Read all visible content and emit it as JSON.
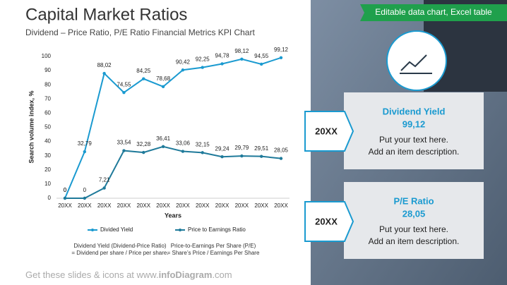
{
  "header": {
    "title": "Capital Market Ratios",
    "subtitle": "Dividend – Price Ratio, P/E Ratio Financial  Metrics KPI Chart"
  },
  "banner": "Editable data chart, Excel table",
  "cards": [
    {
      "label": "20XX",
      "title": "Dividend Yield",
      "value": "99,12",
      "lines": [
        "Put your text here.",
        "Add an item description."
      ]
    },
    {
      "label": "20XX",
      "title": "P/E Ratio",
      "value": "28,05",
      "lines": [
        "Put your text here.",
        "Add an item description."
      ]
    }
  ],
  "footer": [
    "Get these slides & icons at www.",
    "infoDiagram",
    ".com"
  ],
  "chart_data": {
    "type": "line",
    "categories": [
      "20XX",
      "20XX",
      "20XX",
      "20XX",
      "20XX",
      "20XX",
      "20XX",
      "20XX",
      "20XX",
      "20XX",
      "20XX",
      "20XX"
    ],
    "series": [
      {
        "name": "Divided Yield",
        "color": "#1a9ad0",
        "values": [
          0,
          32.79,
          88.02,
          74.55,
          84.25,
          78.68,
          90.42,
          92.25,
          94.78,
          98.12,
          94.55,
          99.12
        ],
        "value_labels": [
          "0",
          "32,79",
          "88,02",
          "74,55",
          "84,25",
          "78,68",
          "90,42",
          "92,25",
          "94,78",
          "98,12",
          "94,55",
          "99,12"
        ]
      },
      {
        "name": "Price to Earnings Ratio",
        "color": "#1f7a9a",
        "values": [
          0,
          0,
          7.21,
          33.54,
          32.28,
          36.41,
          33.06,
          32.15,
          29.24,
          29.79,
          29.51,
          28.05
        ],
        "value_labels": [
          "0",
          "0",
          "7,21",
          "33,54",
          "32,28",
          "36,41",
          "33,06",
          "32,15",
          "29,24",
          "29,79",
          "29,51",
          "28,05"
        ]
      }
    ],
    "ylim": [
      0,
      100
    ],
    "yticks": [
      0,
      10,
      20,
      30,
      40,
      50,
      60,
      70,
      80,
      90,
      100
    ],
    "xlabel": "Years",
    "ylabel": "Search volume index, %",
    "notes": [
      [
        "Dividend Yield (Dividend-Price Ratio)",
        "= Dividend per share / Price per share."
      ],
      [
        "Price-to-Earnings Per Share (P/E)",
        "= Share’s Price / Earnings Per Share"
      ]
    ]
  }
}
